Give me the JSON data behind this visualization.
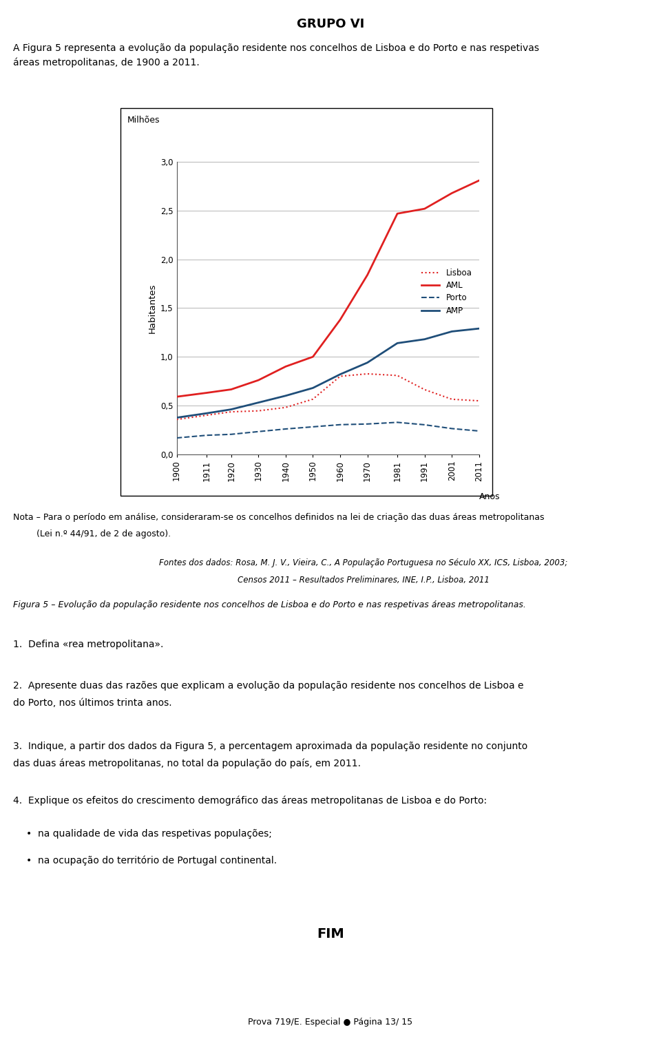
{
  "years": [
    1900,
    1911,
    1920,
    1930,
    1940,
    1950,
    1960,
    1970,
    1981,
    1991,
    2001,
    2011
  ],
  "Lisboa": [
    0.356,
    0.4,
    0.435,
    0.445,
    0.48,
    0.565,
    0.8,
    0.825,
    0.808,
    0.663,
    0.564,
    0.548
  ],
  "AML": [
    0.59,
    0.63,
    0.665,
    0.76,
    0.9,
    1.0,
    1.38,
    1.84,
    2.47,
    2.52,
    2.68,
    2.81
  ],
  "Porto": [
    0.167,
    0.194,
    0.204,
    0.232,
    0.259,
    0.281,
    0.303,
    0.31,
    0.327,
    0.302,
    0.263,
    0.238
  ],
  "AMP": [
    0.375,
    0.42,
    0.46,
    0.53,
    0.6,
    0.68,
    0.82,
    0.94,
    1.14,
    1.18,
    1.26,
    1.29
  ],
  "Lisboa_color": "#e02020",
  "AML_color": "#e02020",
  "Porto_color": "#1f4e79",
  "AMP_color": "#1f4e79",
  "ylabel": "Habitantes",
  "xlabel": "Anos",
  "milhoes_label": "Milhões",
  "ylim": [
    0.0,
    3.0
  ],
  "yticks": [
    0.0,
    0.5,
    1.0,
    1.5,
    2.0,
    2.5,
    3.0
  ],
  "ytick_labels": [
    "0,0",
    "0,5",
    "1,0",
    "1,5",
    "2,0",
    "2,5",
    "3,0"
  ],
  "title_text": "GRUPO VI",
  "intro_text": "A Figura 5 representa a evolução da população residente nos concelhos de Lisboa e do Porto e nas respetivas\náreas metropolitanas, de 1900 a 2011.",
  "nota_text1": "Nota – Para o período em análise, consideraram-se os concelhos definidos na lei de criação das duas áreas metropolitanas",
  "nota_text2": "(Lei n.º 44/91, de 2 de agosto).",
  "fontes_line1": "Fontes dos dados: Rosa, M. J. V., Vieira, C., A População Portuguesa no Século XX, ICS, Lisboa, 2003;",
  "fontes_line2": "Censos 2011 – Resultados Preliminares, INE, I.P., Lisboa, 2011",
  "figura5_text": "Figura 5 – Evolução da população residente nos concelhos de Lisboa e do Porto e nas respetivas áreas metropolitanas.",
  "q1_text": "1.  Defina «rea metropolitana».",
  "q2_line1": "2.  Apresente duas das razões que explicam a evolução da população residente nos concelhos de Lisboa e",
  "q2_line2": "do Porto, nos últimos trinta anos.",
  "q3_line1": "3.  Indique, a partir dos dados da Figura 5, a percentagem aproximada da população residente no conjunto",
  "q3_line2": "das duas áreas metropolitanas, no total da população do país, em 2011.",
  "q4_text": "4.  Explique os efeitos do crescimento demográfico das áreas metropolitanas de Lisboa e do Porto:",
  "q4_bullet1": "na qualidade de vida das respetivas populações;",
  "q4_bullet2": "na ocupação do território de Portugal continental.",
  "fim_text": "FIM",
  "page_text": "Prova 719/E. Especial ● Página 13/ 15",
  "background_color": "#ffffff",
  "chart_bg": "#ffffff",
  "grid_color": "#aaaaaa"
}
